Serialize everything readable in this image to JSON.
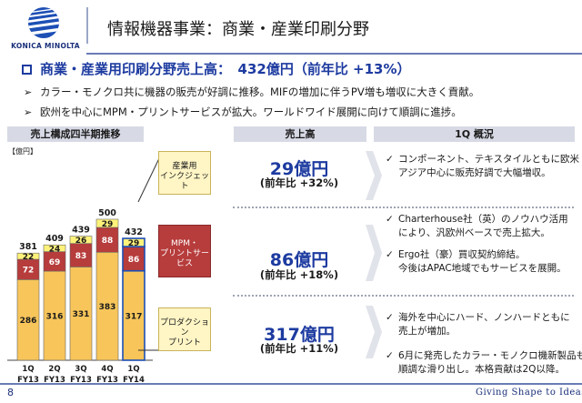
{
  "header": {
    "logo_text": "KONICA MINOLTA",
    "title": "情報機器事業：商業・産業印刷分野"
  },
  "headline": "商業・産業用印刷分野売上高：　432億円（前年比 +13%）",
  "points": [
    "カラー・モノクロ共に機器の販売が好調に推移。MIFの増加に伴うPV増も増収に大きく貢献。",
    "欧州を中心にMPM・プリントサービスが拡大。ワールドワイド展開に向けて順調に進捗。"
  ],
  "bullet_marker": "➢",
  "check_marker": "✓",
  "column_headers": {
    "chart": "売上構成四半期推移",
    "sales": "売上高",
    "q1": "1Q 概況"
  },
  "chart_data": {
    "type": "bar",
    "stacked": true,
    "unit_label": "【億円】",
    "categories": [
      "1Q\nFY13",
      "2Q\nFY13",
      "3Q\nFY13",
      "4Q\nFY13",
      "1Q\nFY14"
    ],
    "category_lines": [
      [
        "1Q",
        "FY13"
      ],
      [
        "2Q",
        "FY13"
      ],
      [
        "3Q",
        "FY13"
      ],
      [
        "4Q",
        "FY13"
      ],
      [
        "1Q",
        "FY14"
      ]
    ],
    "totals": [
      381,
      409,
      439,
      500,
      432
    ],
    "series": [
      {
        "values": [
          286,
          316,
          331,
          383,
          317
        ],
        "color": "#f7c55a"
      },
      {
        "values": [
          72,
          69,
          83,
          88,
          86
        ],
        "color": "#b73c3c"
      },
      {
        "values": [
          22,
          24,
          26,
          29,
          29
        ],
        "color": "#fff27a"
      }
    ],
    "highlight_last": true
  },
  "segments": [
    {
      "label": "産業用\nインクジェット",
      "sales": "29億円",
      "growth": "(前年比 +32%)",
      "notes": [
        {
          "lines": [
            "コンポーネント、テキスタイルともに欧米・",
            "アジア中心に販売好調で大幅増収。"
          ]
        }
      ]
    },
    {
      "label": "MPM・\nプリントサービス",
      "sales": "86億円",
      "growth": "(前年比 +18%)",
      "notes": [
        {
          "lines": [
            "Charterhouse社（英）のノウハウ活用",
            "により、汎欧州ベースで売上拡大。"
          ]
        },
        {
          "lines": [
            "Ergo社（豪）買収契約締結。",
            "今後はAPAC地域でもサービスを展開。"
          ]
        }
      ]
    },
    {
      "label": "プロダクション\nプリント",
      "sales": "317億円",
      "growth": "(前年比 +11%)",
      "notes": [
        {
          "lines": [
            "海外を中心にハード、ノンハードともに",
            "売上が増加。"
          ]
        },
        {
          "lines": [
            "6月に発売したカラー・モノクロ機新製品も",
            "順調な滑り出し。本格貢献は2Q以降。"
          ]
        }
      ]
    }
  ],
  "footer": {
    "page_number": "8",
    "tagline": "Giving Shape to Ideas"
  }
}
